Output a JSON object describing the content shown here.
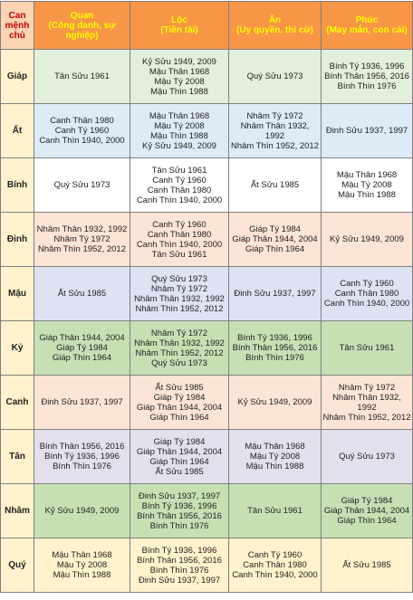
{
  "table": {
    "header": [
      {
        "lines": [
          "Can",
          "mệnh",
          "chủ"
        ]
      },
      {
        "lines": [
          "Quan",
          "(Công danh, sự",
          "nghiệp)"
        ]
      },
      {
        "lines": [
          "Lộc",
          "(Tiền tài)"
        ]
      },
      {
        "lines": [
          "Ấn",
          "(Uy quyền, thi cử)"
        ]
      },
      {
        "lines": [
          "Phúc",
          "(May mắn, con cái)"
        ]
      }
    ],
    "rows": [
      {
        "can": "Giáp",
        "cells": [
          [
            "Tân Sửu 1961"
          ],
          [
            "Kỷ Sửu 1949, 2009",
            "Mậu Thân 1968",
            "Mậu Tý 2008",
            "Mậu Thìn 1988"
          ],
          [
            "Quý Sửu 1973"
          ],
          [
            "Bính Tý 1936, 1996",
            "Bính Thân 1956, 2016",
            "Bính Thìn 1976"
          ]
        ]
      },
      {
        "can": "Ất",
        "cells": [
          [
            "Canh Thân 1980",
            "Canh Tý 1960",
            "Canh Thìn 1940, 2000"
          ],
          [
            "Mậu Thân 1968",
            "Mậu Tý 2008",
            "Mậu Thìn 1988",
            "Kỷ Sửu 1949, 2009"
          ],
          [
            "Nhâm Tý 1972",
            "Nhâm Thân 1932,",
            "1992",
            "Nhâm Thìn 1952, 2012"
          ],
          [
            "Đinh Sửu 1937, 1997"
          ]
        ]
      },
      {
        "can": "Bính",
        "cells": [
          [
            "Quý Sửu 1973"
          ],
          [
            "Tân Sửu 1961",
            "Canh Tý 1960",
            "Canh Thân 1980",
            "Canh Thìn 1940, 2000"
          ],
          [
            "Ất Sửu 1985"
          ],
          [
            "Mậu Thân 1968",
            "Mậu Tý 2008",
            "Mậu Thìn 1988"
          ]
        ]
      },
      {
        "can": "Đinh",
        "cells": [
          [
            "Nhâm Thân 1932, 1992",
            "Nhâm Tý 1972",
            "Nhâm Thìn 1952, 2012"
          ],
          [
            "Canh Tý 1960",
            "Canh Thân 1980",
            "Canh Thìn 1940, 2000",
            "Tân Sửu 1961"
          ],
          [
            "Giáp Tý 1984",
            "Giáp Thân 1944, 2004",
            "Giáp Thìn 1964"
          ],
          [
            "Kỷ Sửu 1949, 2009"
          ]
        ]
      },
      {
        "can": "Mậu",
        "cells": [
          [
            "Ất Sửu 1985"
          ],
          [
            "Quý Sửu 1973",
            "Nhâm Tý 1972",
            "Nhâm Thân 1932, 1992",
            "Nhâm Thìn 1952, 2012"
          ],
          [
            "Đinh Sửu 1937, 1997"
          ],
          [
            "Canh Tý 1960",
            "Canh Thân 1980",
            "Canh Thìn 1940, 2000"
          ]
        ]
      },
      {
        "can": "Kỷ",
        "cells": [
          [
            "Giáp Thân 1944, 2004",
            "Giáp Tý 1984",
            "Giáp Thìn 1964"
          ],
          [
            "Nhâm Tý 1972",
            "Nhâm Thân 1932, 1992",
            "Nhâm Thìn 1952, 2012",
            "Quý Sửu 1973"
          ],
          [
            "Bính Tý 1936, 1996",
            "Bính Thân 1956, 2016",
            "Bính Thìn 1976"
          ],
          [
            "Tân Sửu  1961"
          ]
        ]
      },
      {
        "can": "Canh",
        "cells": [
          [
            "Đinh Sửu 1937, 1997"
          ],
          [
            "Ất Sửu 1985",
            "Giáp Tý 1984",
            "Giáp Thân 1944, 2004",
            "Giáp Thìn 1964"
          ],
          [
            "Kỷ Sửu 1949, 2009"
          ],
          [
            "Nhâm Tý 1972",
            "Nhâm Thân 1932,",
            "1992",
            "Nhâm Thìn 1952, 2012"
          ]
        ]
      },
      {
        "can": "Tân",
        "cells": [
          [
            "Bính Thân 1956, 2016",
            "Bính Tý 1936, 1996",
            "Bính Thìn 1976"
          ],
          [
            "Giáp Tý 1984",
            "Giáp Thân 1944, 2004",
            "Giáp Thìn 1964",
            "Ất Sửu 1985"
          ],
          [
            "Mậu Thân 1968",
            "Mậu Tý 2008",
            "Mậu Thìn 1988"
          ],
          [
            "Quý Sửu 1973"
          ]
        ]
      },
      {
        "can": "Nhâm",
        "cells": [
          [
            "Kỷ Sửu 1949, 2009"
          ],
          [
            "Đinh Sửu 1937, 1997",
            "Bính Tý 1936, 1996",
            "Bính Thân 1956, 2016",
            "Bính Thìn 1976"
          ],
          [
            "Tân Sửu  1961"
          ],
          [
            "Giáp Tý 1984",
            "Giáp Thân 1944, 2004",
            "Giáp Thìn 1964"
          ]
        ]
      },
      {
        "can": "Quý",
        "cells": [
          [
            "Mậu Thân 1968",
            "Mậu Tý 2008",
            "Mậu Thìn 1988"
          ],
          [
            "Bính Tý 1936, 1996",
            "Bính Thân 1956, 2016",
            "Bính Thìn 1976",
            "Đinh Sửu 1937, 1997"
          ],
          [
            "Canh Tý 1960",
            "Canh Thân 1980",
            "Canh Thìn 1940, 2000"
          ],
          [
            "Ất Sửu 1985"
          ]
        ]
      }
    ]
  }
}
